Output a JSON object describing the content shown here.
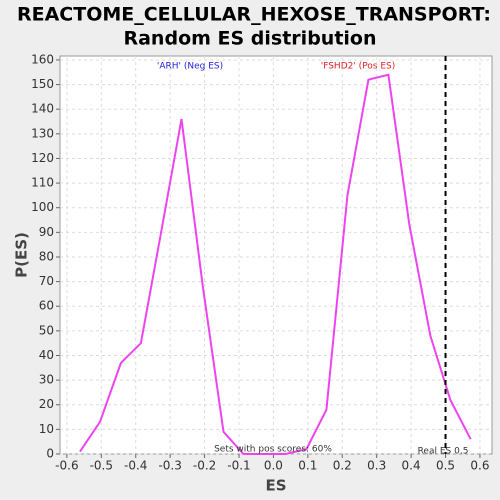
{
  "chart_data": {
    "type": "line",
    "title": [
      "REACTOME_CELLULAR_HEXOSE_TRANSPORT:",
      "Random ES distribution"
    ],
    "x_label": "ES",
    "y_label": "P(ES)",
    "x": [
      -0.562,
      -0.504,
      -0.443,
      -0.385,
      -0.325,
      -0.267,
      -0.206,
      -0.145,
      -0.087,
      -0.026,
      0.035,
      0.096,
      0.154,
      0.215,
      0.276,
      0.334,
      0.395,
      0.456,
      0.514,
      0.573
    ],
    "values": [
      1,
      13,
      37,
      45,
      91,
      136,
      69,
      9,
      0,
      0,
      0,
      2,
      18,
      105,
      152,
      154,
      93,
      48,
      22,
      6
    ],
    "color": "#ee44ee",
    "xlim": [
      -0.62,
      0.635
    ],
    "ylim": [
      0,
      161.6
    ],
    "xticks": [
      -0.6,
      -0.5,
      -0.4,
      -0.3,
      -0.2,
      -0.1,
      {
        "value": 0,
        "label": "0.0"
      },
      0.1,
      0.2,
      0.3,
      0.4,
      0.5,
      0.6
    ],
    "yticks": [
      0,
      10,
      20,
      30,
      40,
      50,
      60,
      70,
      80,
      90,
      100,
      110,
      120,
      130,
      140,
      150,
      160
    ],
    "grid": true,
    "real_es": 0.5,
    "annotations": [
      {
        "text": "'ARH' (Neg ES)",
        "color": "#2222dd"
      },
      {
        "text": "'FSHD2' (Pos ES)",
        "color": "#dd2222"
      },
      {
        "text": "Sets with pos scores: 60%"
      },
      {
        "text": "Real ES 0.5"
      }
    ]
  }
}
